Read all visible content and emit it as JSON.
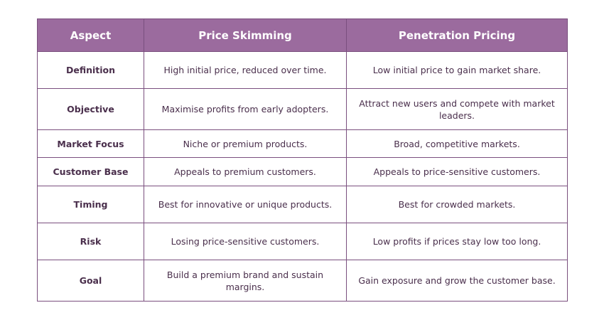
{
  "table": {
    "header": [
      "Aspect",
      "Price Skimming",
      "Penetration Pricing"
    ],
    "rows": [
      [
        "Definition",
        "High initial price, reduced over time.",
        "Low initial price to gain market share."
      ],
      [
        "Objective",
        "Maximise profits from early adopters.",
        "Attract new users and compete with market leaders."
      ],
      [
        "Market Focus",
        "Niche or premium products.",
        "Broad, competitive markets."
      ],
      [
        "Customer Base",
        "Appeals to premium customers.",
        "Appeals to price-sensitive customers."
      ],
      [
        "Timing",
        "Best for innovative or unique products.",
        "Best for crowded markets."
      ],
      [
        "Risk",
        "Losing price-sensitive customers.",
        "Low profits if prices stay low too long."
      ],
      [
        "Goal",
        "Build a premium brand and sustain margins.",
        "Gain exposure and grow the customer base."
      ]
    ]
  }
}
